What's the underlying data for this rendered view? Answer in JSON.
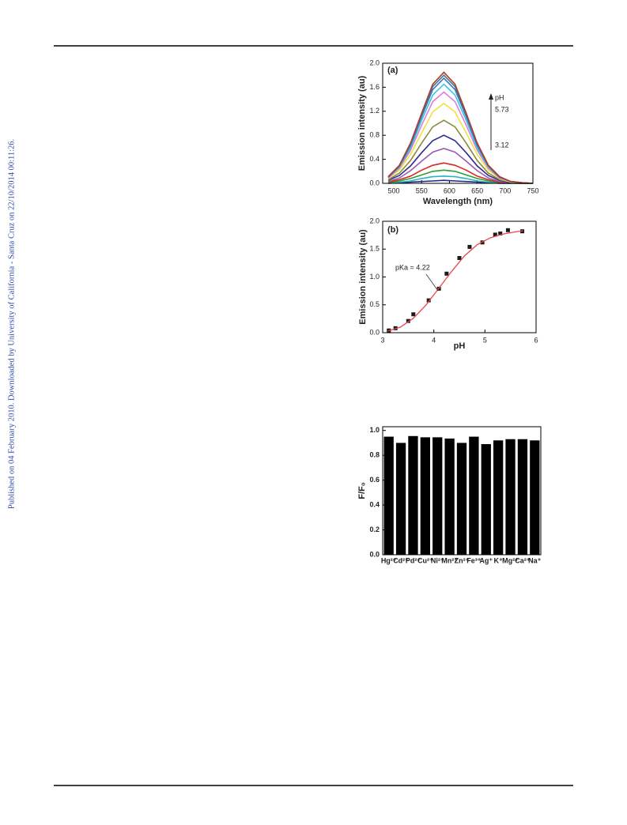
{
  "sidebar": "Published on 04 February 2010. Downloaded by University of California - Santa Cruz on 22/10/2014 00:11:26.",
  "chart_data": [
    {
      "type": "line",
      "panel": "(a)",
      "xlabel": "Wavelength (nm)",
      "ylabel": "Emission intensity (au)",
      "annotations": [
        "pH",
        "5.73",
        "3.12"
      ],
      "x": [
        490,
        510,
        530,
        550,
        570,
        590,
        610,
        630,
        650,
        670,
        690,
        710,
        730,
        750
      ],
      "xlim": [
        480,
        750
      ],
      "xticks": [
        500,
        550,
        600,
        650,
        700,
        750
      ],
      "ylim": [
        0,
        2.0
      ],
      "yticks": [
        {
          "value": 0,
          "label": "0.0"
        },
        0.4,
        0.8,
        1.2,
        1.6,
        {
          "value": 2,
          "label": "2.0"
        }
      ],
      "series": [
        {
          "color": "#1f2a8a",
          "values": [
            0,
            0.01,
            0.02,
            0.03,
            0.04,
            0.05,
            0.04,
            0.03,
            0.02,
            0.01,
            0,
            0,
            0,
            0
          ]
        },
        {
          "color": "#2bb5c7",
          "values": [
            0.01,
            0.02,
            0.04,
            0.08,
            0.11,
            0.12,
            0.11,
            0.08,
            0.04,
            0.02,
            0.01,
            0,
            0,
            0
          ]
        },
        {
          "color": "#2ca02c",
          "values": [
            0.01,
            0.04,
            0.08,
            0.14,
            0.2,
            0.22,
            0.2,
            0.14,
            0.08,
            0.04,
            0.01,
            0,
            0,
            0
          ]
        },
        {
          "color": "#d62728",
          "values": [
            0.02,
            0.06,
            0.12,
            0.22,
            0.3,
            0.34,
            0.3,
            0.22,
            0.12,
            0.06,
            0.02,
            0.01,
            0,
            0
          ]
        },
        {
          "color": "#9b59b6",
          "values": [
            0.03,
            0.09,
            0.21,
            0.37,
            0.52,
            0.58,
            0.52,
            0.37,
            0.21,
            0.09,
            0.03,
            0.01,
            0,
            0
          ]
        },
        {
          "color": "#2c2c8c",
          "values": [
            0.05,
            0.13,
            0.29,
            0.51,
            0.71,
            0.8,
            0.71,
            0.51,
            0.29,
            0.13,
            0.05,
            0.01,
            0,
            0
          ]
        },
        {
          "color": "#8b8b3a",
          "values": [
            0.06,
            0.17,
            0.38,
            0.67,
            0.94,
            1.05,
            0.94,
            0.67,
            0.38,
            0.17,
            0.06,
            0.02,
            0,
            0
          ]
        },
        {
          "color": "#f0e040",
          "values": [
            0.08,
            0.22,
            0.48,
            0.84,
            1.19,
            1.33,
            1.19,
            0.84,
            0.48,
            0.22,
            0.08,
            0.02,
            0.01,
            0
          ]
        },
        {
          "color": "#e27ad8",
          "values": [
            0.09,
            0.25,
            0.55,
            0.97,
            1.36,
            1.52,
            1.36,
            0.97,
            0.55,
            0.25,
            0.09,
            0.03,
            0.01,
            0
          ]
        },
        {
          "color": "#37c6e0",
          "values": [
            0.1,
            0.27,
            0.59,
            1.05,
            1.47,
            1.65,
            1.47,
            1.05,
            0.59,
            0.27,
            0.1,
            0.03,
            0.01,
            0
          ]
        },
        {
          "color": "#3a6fd8",
          "values": [
            0.1,
            0.29,
            0.63,
            1.11,
            1.56,
            1.75,
            1.56,
            1.11,
            0.63,
            0.29,
            0.1,
            0.03,
            0.01,
            0
          ]
        },
        {
          "color": "#3f7f7f",
          "values": [
            0.11,
            0.29,
            0.65,
            1.14,
            1.61,
            1.8,
            1.61,
            1.14,
            0.65,
            0.29,
            0.11,
            0.03,
            0.01,
            0
          ]
        },
        {
          "color": "#b03a2e",
          "values": [
            0.11,
            0.3,
            0.67,
            1.17,
            1.65,
            1.85,
            1.65,
            1.17,
            0.67,
            0.3,
            0.11,
            0.03,
            0.01,
            0
          ]
        }
      ]
    },
    {
      "type": "scatter",
      "panel": "(b)",
      "xlabel": "pH",
      "ylabel": "Emission intensity (au)",
      "annotations": [
        "pKa = 4.22"
      ],
      "xlim": [
        3,
        6
      ],
      "xticks": [
        3,
        4,
        5,
        6
      ],
      "ylim": [
        0,
        2.0
      ],
      "yticks": [
        {
          "value": 0,
          "label": "0.0"
        },
        0.5,
        {
          "value": 1,
          "label": "1.0"
        },
        1.5,
        {
          "value": 2,
          "label": "2.0"
        }
      ],
      "series": [
        {
          "color": "#1a1a1a",
          "marker": "square",
          "x": [
            3.12,
            3.25,
            3.5,
            3.6,
            3.9,
            4.1,
            4.25,
            4.5,
            4.7,
            4.95,
            5.2,
            5.3,
            5.45,
            5.73
          ],
          "values": [
            0.04,
            0.08,
            0.21,
            0.33,
            0.58,
            0.79,
            1.06,
            1.34,
            1.54,
            1.62,
            1.76,
            1.78,
            1.84,
            1.82
          ]
        },
        {
          "color": "#e8474b",
          "line": true,
          "x": [
            3.1,
            3.35,
            3.6,
            3.85,
            4.1,
            4.35,
            4.6,
            4.85,
            5.1,
            5.35,
            5.6,
            5.75
          ],
          "values": [
            0.03,
            0.1,
            0.26,
            0.5,
            0.8,
            1.1,
            1.38,
            1.58,
            1.7,
            1.77,
            1.81,
            1.83
          ]
        }
      ]
    },
    {
      "type": "bar",
      "ylabel": "F/F₀",
      "color": "#000000",
      "categories": [
        "Hg²⁺",
        "Cd²⁺",
        "Pd²⁺",
        "Cu²⁺",
        "Ni²⁺",
        "Mn²⁺",
        "Zn²⁺",
        "Fe³⁺",
        "Ag⁺",
        "K⁺",
        "Mg²⁺",
        "Ca²⁺",
        "Na⁺"
      ],
      "values": [
        0.95,
        0.9,
        0.955,
        0.945,
        0.945,
        0.935,
        0.9,
        0.95,
        0.89,
        0.92,
        0.93,
        0.93,
        0.92
      ],
      "ylim": [
        0,
        1.03
      ],
      "yticks": [
        {
          "value": 0,
          "label": "0.0"
        },
        0.2,
        0.4,
        0.6,
        0.8,
        {
          "value": 1,
          "label": "1.0"
        }
      ]
    }
  ]
}
